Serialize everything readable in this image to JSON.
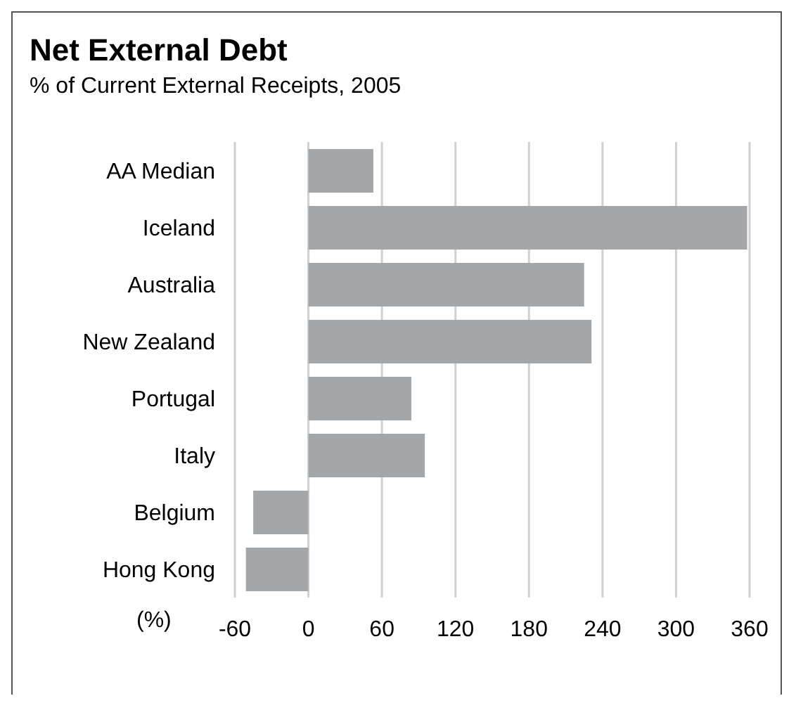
{
  "chart_data": {
    "type": "bar",
    "title": "Net External Debt",
    "subtitle": "% of Current External Receipts, 2005",
    "xlabel": "(%)",
    "orientation": "horizontal",
    "categories": [
      "AA Median",
      "Iceland",
      "Australia",
      "New Zealand",
      "Portugal",
      "Italy",
      "Belgium",
      "Hong Kong"
    ],
    "values": [
      53,
      358,
      225,
      231,
      84,
      95,
      -45,
      -51
    ],
    "color": "#a4a7aa",
    "xlim": [
      -60,
      360
    ],
    "xticks": [
      -60,
      0,
      60,
      120,
      180,
      240,
      300,
      360
    ],
    "grid": "x"
  }
}
